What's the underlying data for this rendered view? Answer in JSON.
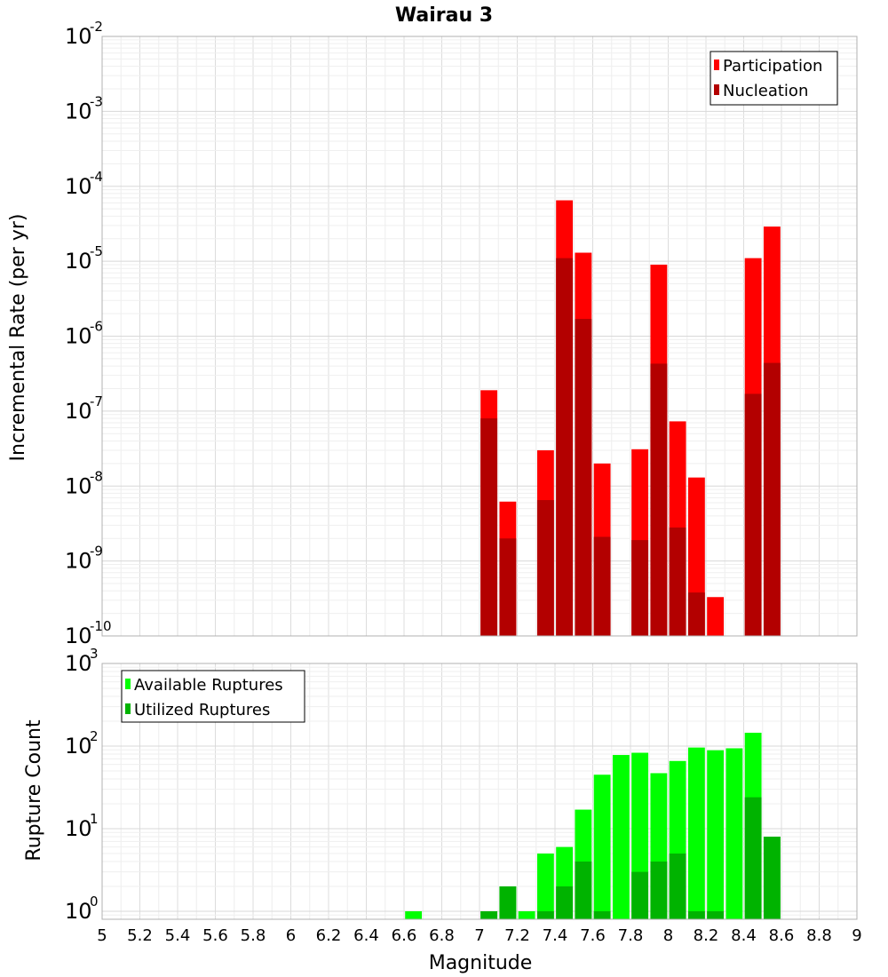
{
  "title": "Wairau 3",
  "chart_data": [
    {
      "type": "bar",
      "panel": "top",
      "ylabel": "Incremental Rate (per yr)",
      "yscale": "log",
      "ylim": [
        1e-10,
        0.01
      ],
      "ytick_exponents": [
        "-10",
        "-9",
        "-8",
        "-7",
        "-6",
        "-5",
        "-4",
        "-3",
        "-2"
      ],
      "xlim": [
        5,
        9
      ],
      "grid": true,
      "legend_position": "top-right",
      "series": [
        {
          "name": "Participation",
          "color": "#ff0000",
          "points": [
            {
              "x": 7.05,
              "y": 1.9e-07
            },
            {
              "x": 7.15,
              "y": 6.2e-09
            },
            {
              "x": 7.35,
              "y": 3e-08
            },
            {
              "x": 7.45,
              "y": 6.5e-05
            },
            {
              "x": 7.55,
              "y": 1.3e-05
            },
            {
              "x": 7.65,
              "y": 2e-08
            },
            {
              "x": 7.85,
              "y": 3.1e-08
            },
            {
              "x": 7.95,
              "y": 9e-06
            },
            {
              "x": 8.05,
              "y": 7.3e-08
            },
            {
              "x": 8.15,
              "y": 1.3e-08
            },
            {
              "x": 8.25,
              "y": 3.3e-10
            },
            {
              "x": 8.45,
              "y": 1.1e-05
            },
            {
              "x": 8.55,
              "y": 2.9e-05
            }
          ]
        },
        {
          "name": "Nucleation",
          "color": "#b30000",
          "points": [
            {
              "x": 7.05,
              "y": 8e-08
            },
            {
              "x": 7.15,
              "y": 2e-09
            },
            {
              "x": 7.35,
              "y": 6.5e-09
            },
            {
              "x": 7.45,
              "y": 1.1e-05
            },
            {
              "x": 7.55,
              "y": 1.7e-06
            },
            {
              "x": 7.65,
              "y": 2.1e-09
            },
            {
              "x": 7.85,
              "y": 1.9e-09
            },
            {
              "x": 7.95,
              "y": 4.3e-07
            },
            {
              "x": 8.05,
              "y": 2.8e-09
            },
            {
              "x": 8.15,
              "y": 3.8e-10
            },
            {
              "x": 8.45,
              "y": 1.7e-07
            },
            {
              "x": 8.55,
              "y": 4.4e-07
            }
          ]
        }
      ]
    },
    {
      "type": "bar",
      "panel": "bottom",
      "xlabel": "Magnitude",
      "ylabel": "Rupture Count",
      "yscale": "log",
      "ylim": [
        0.8,
        1000
      ],
      "ytick_exponents": [
        "0",
        "1",
        "2",
        "3"
      ],
      "xlim": [
        5,
        9
      ],
      "xticks": [
        "5",
        "5.2",
        "5.4",
        "5.6",
        "5.8",
        "6",
        "6.2",
        "6.4",
        "6.6",
        "6.8",
        "7",
        "7.2",
        "7.4",
        "7.6",
        "7.8",
        "8",
        "8.2",
        "8.4",
        "8.6",
        "8.8",
        "9"
      ],
      "grid": true,
      "legend_position": "top-left",
      "series": [
        {
          "name": "Available Ruptures",
          "color": "#00ff00",
          "points": [
            {
              "x": 6.65,
              "y": 1
            },
            {
              "x": 7.05,
              "y": 1
            },
            {
              "x": 7.15,
              "y": 2
            },
            {
              "x": 7.25,
              "y": 1
            },
            {
              "x": 7.35,
              "y": 5
            },
            {
              "x": 7.45,
              "y": 6
            },
            {
              "x": 7.55,
              "y": 17
            },
            {
              "x": 7.65,
              "y": 45
            },
            {
              "x": 7.75,
              "y": 78
            },
            {
              "x": 7.85,
              "y": 83
            },
            {
              "x": 7.95,
              "y": 47
            },
            {
              "x": 8.05,
              "y": 66
            },
            {
              "x": 8.15,
              "y": 96
            },
            {
              "x": 8.25,
              "y": 89
            },
            {
              "x": 8.35,
              "y": 94
            },
            {
              "x": 8.45,
              "y": 145
            },
            {
              "x": 8.55,
              "y": 8
            }
          ]
        },
        {
          "name": "Utilized Ruptures",
          "color": "#00b300",
          "points": [
            {
              "x": 7.05,
              "y": 1
            },
            {
              "x": 7.15,
              "y": 2
            },
            {
              "x": 7.35,
              "y": 1
            },
            {
              "x": 7.45,
              "y": 2
            },
            {
              "x": 7.55,
              "y": 4
            },
            {
              "x": 7.65,
              "y": 1
            },
            {
              "x": 7.85,
              "y": 3
            },
            {
              "x": 7.95,
              "y": 4
            },
            {
              "x": 8.05,
              "y": 5
            },
            {
              "x": 8.15,
              "y": 1
            },
            {
              "x": 8.25,
              "y": 1
            },
            {
              "x": 8.45,
              "y": 24
            },
            {
              "x": 8.55,
              "y": 8
            }
          ]
        }
      ]
    }
  ]
}
